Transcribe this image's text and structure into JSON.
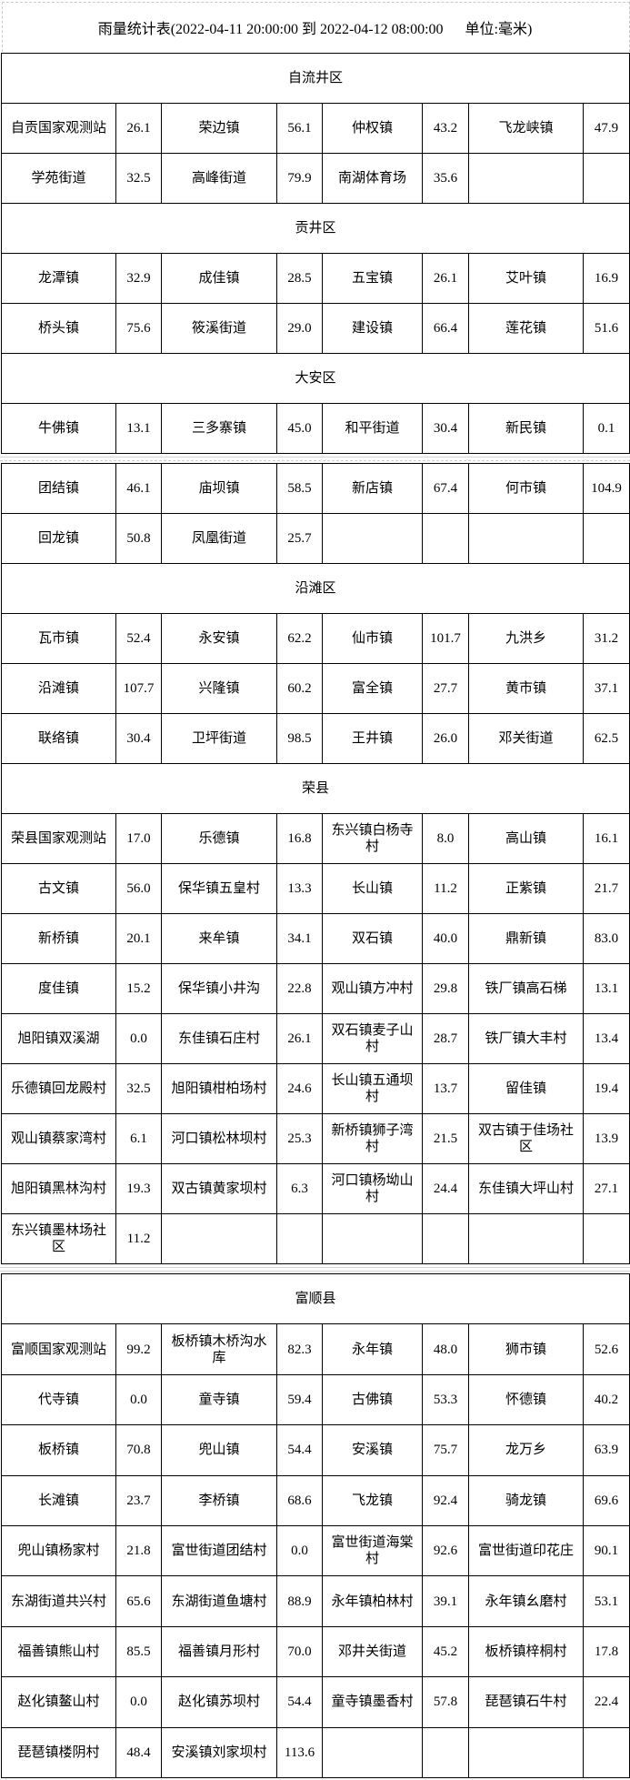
{
  "title": "雨量统计表(2022-04-11 20:00:00 到 2022-04-12 08:00:00      单位:毫米)",
  "tables": [
    {
      "rows": [
        {
          "header": "自流井区"
        },
        {
          "cells": [
            [
              "自贡国家观测站",
              "26.1"
            ],
            [
              "荣边镇",
              "56.1"
            ],
            [
              "仲权镇",
              "43.2"
            ],
            [
              "飞龙峡镇",
              "47.9"
            ]
          ]
        },
        {
          "cells": [
            [
              "学苑街道",
              "32.5"
            ],
            [
              "高峰街道",
              "79.9"
            ],
            [
              "南湖体育场",
              "35.6"
            ],
            [
              "",
              ""
            ]
          ]
        },
        {
          "header": "贡井区"
        },
        {
          "cells": [
            [
              "龙潭镇",
              "32.9"
            ],
            [
              "成佳镇",
              "28.5"
            ],
            [
              "五宝镇",
              "26.1"
            ],
            [
              "艾叶镇",
              "16.9"
            ]
          ]
        },
        {
          "cells": [
            [
              "桥头镇",
              "75.6"
            ],
            [
              "筱溪街道",
              "29.0"
            ],
            [
              "建设镇",
              "66.4"
            ],
            [
              "莲花镇",
              "51.6"
            ]
          ]
        },
        {
          "header": "大安区"
        },
        {
          "cells": [
            [
              "牛佛镇",
              "13.1"
            ],
            [
              "三多寨镇",
              "45.0"
            ],
            [
              "和平街道",
              "30.4"
            ],
            [
              "新民镇",
              "0.1"
            ]
          ]
        }
      ]
    },
    {
      "rows": [
        {
          "cells": [
            [
              "团结镇",
              "46.1"
            ],
            [
              "庙坝镇",
              "58.5"
            ],
            [
              "新店镇",
              "67.4"
            ],
            [
              "何市镇",
              "104.9"
            ]
          ]
        },
        {
          "cells": [
            [
              "回龙镇",
              "50.8"
            ],
            [
              "凤凰街道",
              "25.7"
            ],
            [
              "",
              ""
            ],
            [
              "",
              ""
            ]
          ]
        },
        {
          "header": "沿滩区"
        },
        {
          "cells": [
            [
              "瓦市镇",
              "52.4"
            ],
            [
              "永安镇",
              "62.2"
            ],
            [
              "仙市镇",
              "101.7"
            ],
            [
              "九洪乡",
              "31.2"
            ]
          ]
        },
        {
          "cells": [
            [
              "沿滩镇",
              "107.7"
            ],
            [
              "兴隆镇",
              "60.2"
            ],
            [
              "富全镇",
              "27.7"
            ],
            [
              "黄市镇",
              "37.1"
            ]
          ]
        },
        {
          "cells": [
            [
              "联络镇",
              "30.4"
            ],
            [
              "卫坪街道",
              "98.5"
            ],
            [
              "王井镇",
              "26.0"
            ],
            [
              "邓关街道",
              "62.5"
            ]
          ]
        },
        {
          "header": "荣县"
        },
        {
          "cells": [
            [
              "荣县国家观测站",
              "17.0"
            ],
            [
              "乐德镇",
              "16.8"
            ],
            [
              "东兴镇白杨寺村",
              "8.0"
            ],
            [
              "高山镇",
              "16.1"
            ]
          ]
        },
        {
          "cells": [
            [
              "古文镇",
              "56.0"
            ],
            [
              "保华镇五皇村",
              "13.3"
            ],
            [
              "长山镇",
              "11.2"
            ],
            [
              "正紫镇",
              "21.7"
            ]
          ]
        },
        {
          "cells": [
            [
              "新桥镇",
              "20.1"
            ],
            [
              "来牟镇",
              "34.1"
            ],
            [
              "双石镇",
              "40.0"
            ],
            [
              "鼎新镇",
              "83.0"
            ]
          ]
        },
        {
          "cells": [
            [
              "度佳镇",
              "15.2"
            ],
            [
              "保华镇小井沟",
              "22.8"
            ],
            [
              "观山镇方冲村",
              "29.8"
            ],
            [
              "铁厂镇高石梯",
              "13.1"
            ]
          ]
        },
        {
          "cells": [
            [
              "旭阳镇双溪湖",
              "0.0"
            ],
            [
              "东佳镇石庄村",
              "26.1"
            ],
            [
              "双石镇麦子山村",
              "28.7"
            ],
            [
              "铁厂镇大丰村",
              "13.4"
            ]
          ]
        },
        {
          "cells": [
            [
              "乐德镇回龙殿村",
              "32.5"
            ],
            [
              "旭阳镇柑柏场村",
              "24.6"
            ],
            [
              "长山镇五通坝村",
              "13.7"
            ],
            [
              "留佳镇",
              "19.4"
            ]
          ]
        },
        {
          "cells": [
            [
              "观山镇蔡家湾村",
              "6.1"
            ],
            [
              "河口镇松林坝村",
              "25.3"
            ],
            [
              "新桥镇狮子湾村",
              "21.5"
            ],
            [
              "双古镇于佳场社区",
              "13.9"
            ]
          ]
        },
        {
          "cells": [
            [
              "旭阳镇黑林沟村",
              "19.3"
            ],
            [
              "双古镇黄家坝村",
              "6.3"
            ],
            [
              "河口镇杨坳山村",
              "24.4"
            ],
            [
              "东佳镇大坪山村",
              "27.1"
            ]
          ]
        },
        {
          "cells": [
            [
              "东兴镇墨林场社区",
              "11.2"
            ],
            [
              "",
              ""
            ],
            [
              "",
              ""
            ],
            [
              "",
              ""
            ]
          ]
        }
      ]
    },
    {
      "rows": [
        {
          "header": "富顺县"
        },
        {
          "cells": [
            [
              "富顺国家观测站",
              "99.2"
            ],
            [
              "板桥镇木桥沟水库",
              "82.3"
            ],
            [
              "永年镇",
              "48.0"
            ],
            [
              "狮市镇",
              "52.6"
            ]
          ]
        },
        {
          "cells": [
            [
              "代寺镇",
              "0.0"
            ],
            [
              "童寺镇",
              "59.4"
            ],
            [
              "古佛镇",
              "53.3"
            ],
            [
              "怀德镇",
              "40.2"
            ]
          ]
        },
        {
          "cells": [
            [
              "板桥镇",
              "70.8"
            ],
            [
              "兜山镇",
              "54.4"
            ],
            [
              "安溪镇",
              "75.7"
            ],
            [
              "龙万乡",
              "63.9"
            ]
          ]
        },
        {
          "cells": [
            [
              "长滩镇",
              "23.7"
            ],
            [
              "李桥镇",
              "68.6"
            ],
            [
              "飞龙镇",
              "92.4"
            ],
            [
              "骑龙镇",
              "69.6"
            ]
          ]
        },
        {
          "cells": [
            [
              "兜山镇杨家村",
              "21.8"
            ],
            [
              "富世街道团结村",
              "0.0"
            ],
            [
              "富世街道海棠村",
              "92.6"
            ],
            [
              "富世街道印花庄",
              "90.1"
            ]
          ]
        },
        {
          "cells": [
            [
              "东湖街道共兴村",
              "65.6"
            ],
            [
              "东湖街道鱼塘村",
              "88.9"
            ],
            [
              "永年镇柏林村",
              "39.1"
            ],
            [
              "永年镇幺磨村",
              "53.1"
            ]
          ]
        },
        {
          "cells": [
            [
              "福善镇熊山村",
              "85.5"
            ],
            [
              "福善镇月形村",
              "70.0"
            ],
            [
              "邓井关街道",
              "45.2"
            ],
            [
              "板桥镇梓桐村",
              "17.8"
            ]
          ]
        },
        {
          "cells": [
            [
              "赵化镇鳌山村",
              "0.0"
            ],
            [
              "赵化镇苏坝村",
              "54.4"
            ],
            [
              "童寺镇墨香村",
              "57.8"
            ],
            [
              "琵琶镇石牛村",
              "22.4"
            ]
          ]
        },
        {
          "cells": [
            [
              "琵琶镇楼阴村",
              "48.4"
            ],
            [
              "安溪镇刘家坝村",
              "113.6"
            ],
            [
              "",
              ""
            ],
            [
              "",
              ""
            ]
          ]
        }
      ]
    }
  ]
}
